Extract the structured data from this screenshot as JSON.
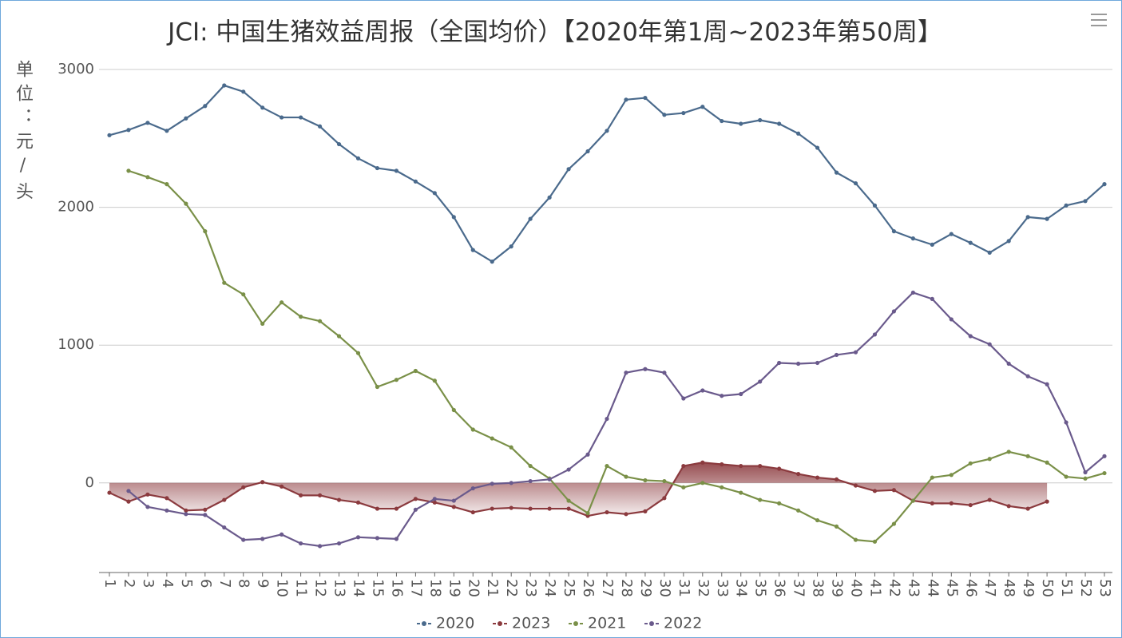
{
  "chart_data": {
    "type": "line",
    "title": "JCI: 中国生猪效益周报（全国均价）【2020年第1周~2023年第50周】",
    "y_label": "单位：元/头",
    "categories": [
      "1",
      "2",
      "3",
      "4",
      "5",
      "6",
      "7",
      "8",
      "9",
      "10",
      "11",
      "12",
      "13",
      "14",
      "15",
      "16",
      "17",
      "18",
      "19",
      "20",
      "21",
      "22",
      "23",
      "24",
      "25",
      "26",
      "27",
      "28",
      "29",
      "30",
      "31",
      "32",
      "33",
      "34",
      "35",
      "36",
      "37",
      "38",
      "39",
      "40",
      "41",
      "42",
      "43",
      "44",
      "45",
      "46",
      "47",
      "48",
      "49",
      "50",
      "51",
      "52",
      "53"
    ],
    "ylim": [
      -650,
      3000
    ],
    "yticks": [
      0,
      1000,
      2000,
      3000
    ],
    "grid": true,
    "legend": "bottom",
    "series": [
      {
        "name": "2020",
        "color": "#4a6a8c",
        "values": [
          2523,
          2561,
          2613,
          2555,
          2645,
          2735,
          2884,
          2839,
          2723,
          2652,
          2652,
          2587,
          2458,
          2355,
          2284,
          2265,
          2187,
          2103,
          1929,
          1690,
          1606,
          1716,
          1916,
          2071,
          2277,
          2406,
          2555,
          2781,
          2794,
          2671,
          2684,
          2729,
          2626,
          2606,
          2632,
          2606,
          2535,
          2432,
          2252,
          2174,
          2013,
          1826,
          1774,
          1729,
          1806,
          1742,
          1671,
          1755,
          1929,
          1916,
          2013,
          2045,
          2168
        ]
      },
      {
        "name": "2023",
        "color": "#8b3a3e",
        "area": true,
        "values": [
          -71,
          -135,
          -84,
          -110,
          -200,
          -194,
          -123,
          -32,
          6,
          -26,
          -90,
          -90,
          -123,
          -142,
          -187,
          -187,
          -116,
          -142,
          -174,
          -213,
          -187,
          -181,
          -187,
          -187,
          -187,
          -239,
          -213,
          -226,
          -206,
          -110,
          123,
          148,
          135,
          123,
          123,
          103,
          65,
          39,
          26,
          -19,
          -58,
          -52,
          -129,
          -148,
          -148,
          -161,
          -123,
          -168,
          -187,
          -135,
          null,
          null,
          null
        ]
      },
      {
        "name": "2021",
        "color": "#7a9048",
        "values": [
          null,
          2265,
          2219,
          2168,
          2026,
          1826,
          1452,
          1368,
          1155,
          1310,
          1206,
          1174,
          1065,
          942,
          697,
          748,
          813,
          742,
          529,
          387,
          323,
          258,
          123,
          32,
          -129,
          -219,
          123,
          45,
          19,
          13,
          -32,
          0,
          -32,
          -71,
          -123,
          -148,
          -200,
          -271,
          -316,
          -413,
          -426,
          -297,
          -129,
          39,
          58,
          142,
          174,
          226,
          194,
          148,
          45,
          32,
          71
        ]
      },
      {
        "name": "2022",
        "color": "#6a5a8c",
        "values": [
          null,
          -58,
          -174,
          -200,
          -226,
          -232,
          -323,
          -413,
          -406,
          -374,
          -439,
          -458,
          -439,
          -394,
          -400,
          -406,
          -194,
          -116,
          -129,
          -39,
          -6,
          0,
          13,
          26,
          97,
          206,
          465,
          800,
          826,
          800,
          613,
          671,
          632,
          645,
          735,
          871,
          865,
          871,
          929,
          948,
          1077,
          1245,
          1381,
          1335,
          1187,
          1065,
          1006,
          865,
          774,
          716,
          439,
          77,
          194
        ]
      }
    ]
  }
}
